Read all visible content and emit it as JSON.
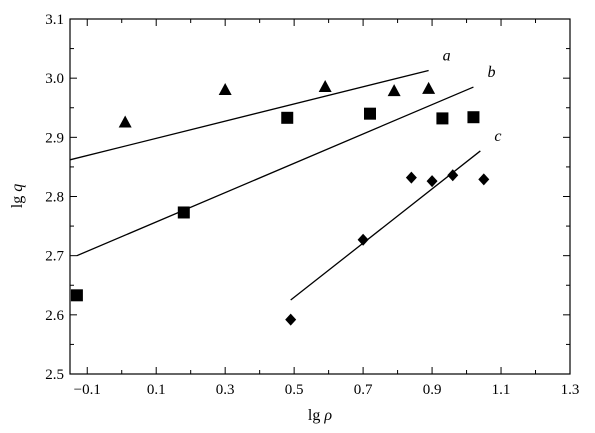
{
  "chart_data": {
    "type": "scatter",
    "xlabel": {
      "prefix": "lg",
      "symbol": "ρ"
    },
    "ylabel": {
      "prefix": "lg",
      "symbol": "q"
    },
    "xlim": [
      -0.15,
      1.3
    ],
    "ylim": [
      2.5,
      3.1
    ],
    "x_ticks": [
      -0.1,
      0.1,
      0.3,
      0.5,
      0.7,
      0.9,
      1.1,
      1.3
    ],
    "x_tick_labels": [
      "−0.1",
      "0.1",
      "0.3",
      "0.5",
      "0.7",
      "0.9",
      "1.1",
      "1.3"
    ],
    "y_ticks": [
      2.5,
      2.6,
      2.7,
      2.8,
      2.9,
      3.0,
      3.1
    ],
    "y_tick_labels": [
      "2.5",
      "2.6",
      "2.7",
      "2.8",
      "2.9",
      "3.0",
      "3.1"
    ],
    "grid": false,
    "series": [
      {
        "marker": "triangle",
        "points": [
          [
            0.01,
            2.925
          ],
          [
            0.3,
            2.98
          ],
          [
            0.59,
            2.985
          ],
          [
            0.79,
            2.978
          ],
          [
            0.89,
            2.982
          ]
        ]
      },
      {
        "marker": "square",
        "points": [
          [
            -0.13,
            2.633
          ],
          [
            0.18,
            2.773
          ],
          [
            0.48,
            2.933
          ],
          [
            0.72,
            2.94
          ],
          [
            0.93,
            2.932
          ],
          [
            1.02,
            2.934
          ]
        ]
      },
      {
        "marker": "diamond",
        "points": [
          [
            0.49,
            2.592
          ],
          [
            0.7,
            2.727
          ],
          [
            0.84,
            2.832
          ],
          [
            0.9,
            2.826
          ],
          [
            0.96,
            2.836
          ],
          [
            1.05,
            2.829
          ]
        ]
      }
    ],
    "fit_lines": [
      {
        "label": "a",
        "start": [
          -0.15,
          2.862
        ],
        "end": [
          0.89,
          3.013
        ]
      },
      {
        "label": "b",
        "start": [
          -0.13,
          2.7
        ],
        "end": [
          1.02,
          2.985
        ]
      },
      {
        "label": "c",
        "start": [
          0.49,
          2.625
        ],
        "end": [
          1.04,
          2.877
        ]
      }
    ]
  }
}
